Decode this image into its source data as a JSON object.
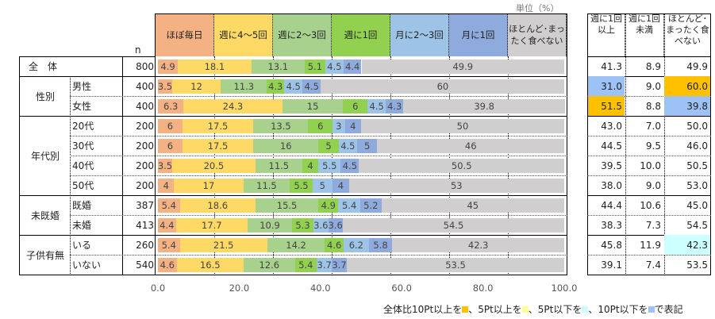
{
  "unit_label": "単位（%）",
  "n_header": "n",
  "colors": [
    "#f4b183",
    "#ffd966",
    "#a9d18e",
    "#92d050",
    "#9dc3e6",
    "#8faadc",
    "#d0cece"
  ],
  "highlight_colors": {
    "plus10": "#ffc000",
    "plus5": "#ffff99",
    "minus5": "#ccffff",
    "minus10": "#9dc3f6"
  },
  "chart_data": {
    "type": "bar",
    "stacked": true,
    "orientation": "horizontal",
    "series_names": [
      "ほぼ毎日",
      "週に4～5回",
      "週に2～3回",
      "週に1回",
      "月に2～3回",
      "月に1回",
      "ほとんど･まったく食べない"
    ],
    "xlim": [
      0,
      100
    ],
    "xticks": [
      "0.0",
      "20.0",
      "40.0",
      "60.0",
      "80.0",
      "100.0"
    ],
    "rows": [
      {
        "group": "全　体",
        "label": "",
        "n": "800",
        "values": [
          4.9,
          18.1,
          13.1,
          5.1,
          4.5,
          4.4,
          49.9
        ],
        "summary": [
          "41.3",
          "8.9",
          "49.9"
        ],
        "hl": [
          null,
          null,
          null
        ]
      },
      {
        "group": "性別",
        "label": "男性",
        "n": "400",
        "values": [
          3.5,
          12.0,
          11.3,
          4.3,
          4.5,
          4.5,
          60.0
        ],
        "summary": [
          "31.0",
          "9.0",
          "60.0"
        ],
        "hl": [
          "minus10",
          null,
          "plus10"
        ]
      },
      {
        "group": "",
        "label": "女性",
        "n": "400",
        "values": [
          6.3,
          24.3,
          15.0,
          6.0,
          4.5,
          4.3,
          39.8
        ],
        "summary": [
          "51.5",
          "8.8",
          "39.8"
        ],
        "hl": [
          "plus10",
          null,
          "minus10"
        ]
      },
      {
        "group": "年代別",
        "label": "20代",
        "n": "200",
        "values": [
          6.0,
          17.5,
          13.5,
          6.0,
          3.0,
          4.0,
          50.0
        ],
        "summary": [
          "43.0",
          "7.0",
          "50.0"
        ],
        "hl": [
          null,
          null,
          null
        ]
      },
      {
        "group": "",
        "label": "30代",
        "n": "200",
        "values": [
          6.0,
          17.5,
          16.0,
          5.0,
          4.5,
          5.0,
          46.0
        ],
        "summary": [
          "44.5",
          "9.5",
          "46.0"
        ],
        "hl": [
          null,
          null,
          null
        ]
      },
      {
        "group": "",
        "label": "40代",
        "n": "200",
        "values": [
          3.5,
          20.5,
          11.5,
          4.0,
          5.5,
          4.5,
          50.5
        ],
        "summary": [
          "39.5",
          "10.0",
          "50.5"
        ],
        "hl": [
          null,
          null,
          null
        ]
      },
      {
        "group": "",
        "label": "50代",
        "n": "200",
        "values": [
          4.0,
          17.0,
          11.5,
          5.5,
          5.0,
          4.0,
          53.0
        ],
        "summary": [
          "38.0",
          "9.0",
          "53.0"
        ],
        "hl": [
          null,
          null,
          null
        ]
      },
      {
        "group": "未既婚",
        "label": "既婚",
        "n": "387",
        "values": [
          5.4,
          18.6,
          15.5,
          4.9,
          5.4,
          5.2,
          45.0
        ],
        "summary": [
          "44.4",
          "10.6",
          "45.0"
        ],
        "hl": [
          null,
          null,
          null
        ]
      },
      {
        "group": "",
        "label": "未婚",
        "n": "413",
        "values": [
          4.4,
          17.7,
          10.9,
          5.3,
          3.6,
          3.6,
          54.5
        ],
        "summary": [
          "38.3",
          "7.3",
          "54.5"
        ],
        "hl": [
          null,
          null,
          null
        ]
      },
      {
        "group": "子供有無",
        "label": "いる",
        "n": "260",
        "values": [
          5.4,
          21.5,
          14.2,
          4.6,
          6.2,
          5.8,
          42.3
        ],
        "summary": [
          "45.8",
          "11.9",
          "42.3"
        ],
        "hl": [
          null,
          null,
          "minus5"
        ]
      },
      {
        "group": "",
        "label": "いない",
        "n": "540",
        "values": [
          4.6,
          16.5,
          12.6,
          5.4,
          3.7,
          3.7,
          53.5
        ],
        "summary": [
          "39.1",
          "7.4",
          "53.5"
        ],
        "hl": [
          null,
          null,
          null
        ]
      }
    ]
  },
  "summary_headers": [
    "週に1回以上",
    "週に1回未満",
    "ほとんど･まったく食べない"
  ],
  "legend": {
    "prefix": "全体比10Pt以上を",
    "p2": "、5Pt以上を",
    "p3": "、5Pt以下を",
    "p4": "、10Pt以下を",
    "suffix": "で表記"
  }
}
